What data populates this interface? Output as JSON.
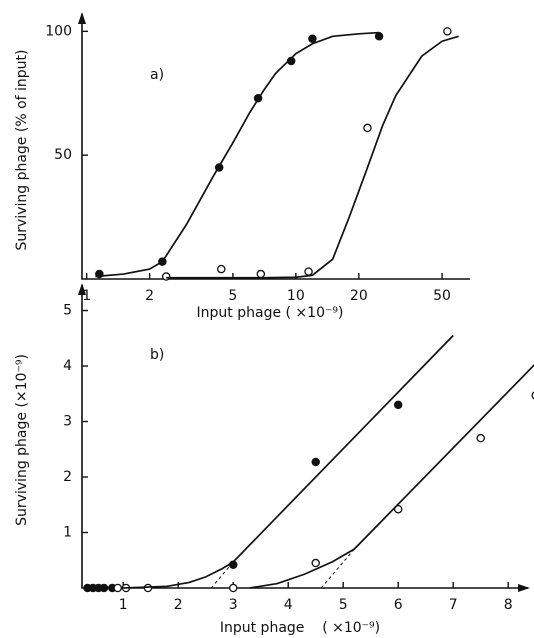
{
  "chart_data": [
    {
      "type": "scatter",
      "panel_label": "a)",
      "x_label": "Input phage ( ×10⁻⁹)",
      "y_label": "Surviving phage (% of input)",
      "xscale": "log",
      "xlim": [
        0.95,
        68
      ],
      "ylim": [
        0,
        107
      ],
      "xticks": [
        1,
        2,
        5,
        10,
        20,
        50
      ],
      "yticks": [
        50,
        100
      ],
      "series": [
        {
          "color": "#111",
          "marker": "filled",
          "line": "none",
          "x": [
            1.15,
            2.3,
            4.3,
            6.6,
            9.5,
            12,
            25
          ],
          "values": [
            2,
            7,
            45,
            73,
            88,
            97,
            98
          ]
        },
        {
          "color": "#111",
          "marker": "open",
          "line": "none",
          "x": [
            2.4,
            4.4,
            6.8,
            11.5,
            22,
            53
          ],
          "values": [
            1,
            4,
            2,
            3,
            61,
            100
          ]
        },
        {
          "color": "#111",
          "marker": "none",
          "line": "solid",
          "x": [
            1.1,
            1.5,
            2,
            2.3,
            3,
            4,
            5,
            6,
            7,
            8,
            10,
            12,
            15,
            20,
            25
          ],
          "values": [
            1,
            2,
            4,
            7,
            22,
            41,
            55,
            67,
            76,
            83,
            91,
            95,
            98,
            99,
            99.5
          ]
        },
        {
          "color": "#111",
          "marker": "none",
          "line": "solid",
          "x": [
            2.4,
            7,
            10,
            12,
            15,
            18,
            22,
            26,
            30,
            40,
            50,
            60
          ],
          "values": [
            0.5,
            0.5,
            0.7,
            1.5,
            8,
            25,
            45,
            62,
            74,
            90,
            96,
            98
          ]
        }
      ]
    },
    {
      "type": "scatter",
      "panel_label": "b)",
      "x_label": "Input phage    ( ×10⁻⁹)",
      "y_label": "Surviving phage (×10⁻⁹)",
      "xscale": "linear",
      "xlim": [
        0.25,
        8.36
      ],
      "ylim": [
        0,
        5.46
      ],
      "xticks": [
        1,
        2,
        3,
        4,
        5,
        6,
        7,
        8
      ],
      "yticks": [
        1,
        2,
        3,
        4,
        5
      ],
      "series": [
        {
          "color": "#111",
          "marker": "filled",
          "line": "none",
          "x": [
            0.35,
            0.45,
            0.55,
            0.65,
            0.8,
            3,
            4.5,
            6
          ],
          "values": [
            0,
            0,
            0,
            0,
            0,
            0.42,
            2.27,
            3.3
          ]
        },
        {
          "color": "#111",
          "marker": "open",
          "line": "none",
          "x": [
            0.9,
            1.05,
            1.45,
            3,
            4.5,
            6,
            7.5,
            8.5
          ],
          "values": [
            0,
            0,
            0,
            0,
            0.45,
            1.42,
            2.7,
            3.47
          ]
        },
        {
          "color": "#111",
          "marker": "none",
          "line": "solid",
          "x": [
            1,
            1.8,
            2.2,
            2.5,
            2.8,
            3,
            7
          ],
          "values": [
            0,
            0.03,
            0.1,
            0.2,
            0.35,
            0.47,
            4.55
          ]
        },
        {
          "color": "#111",
          "marker": "none",
          "line": "solid",
          "x": [
            3.3,
            3.8,
            4.3,
            4.8,
            5.2,
            8.8
          ],
          "values": [
            0,
            0.08,
            0.25,
            0.47,
            0.7,
            4.35
          ]
        },
        {
          "color": "#111",
          "marker": "none",
          "line": "dashed",
          "x": [
            2.6,
            3
          ],
          "values": [
            0,
            0.47
          ]
        },
        {
          "color": "#111",
          "marker": "none",
          "line": "dashed",
          "x": [
            4.6,
            5.2
          ],
          "values": [
            0,
            0.7
          ]
        }
      ]
    }
  ]
}
